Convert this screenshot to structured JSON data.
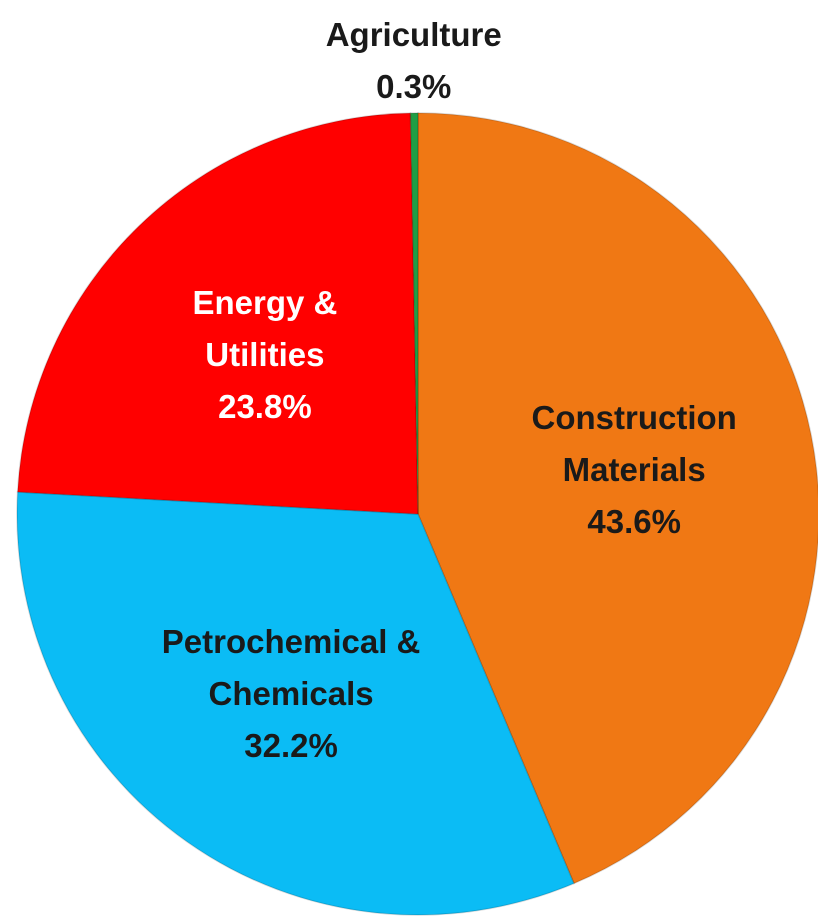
{
  "chart_data": {
    "type": "pie",
    "categories": [
      "Construction\nMaterials",
      "Petrochemical &\nChemicals",
      "Energy &\nUtilities",
      "Agriculture"
    ],
    "values": [
      43.6,
      32.2,
      23.8,
      0.3
    ],
    "value_labels": [
      "43.6%",
      "32.2%",
      "23.8%",
      "0.3%"
    ],
    "colors": [
      "#f07814",
      "#0bbcf5",
      "#ff0000",
      "#1f9e45"
    ],
    "label_colors": [
      "#1a1a1a",
      "#1a1a1a",
      "#ffffff",
      "#1a1a1a"
    ]
  }
}
